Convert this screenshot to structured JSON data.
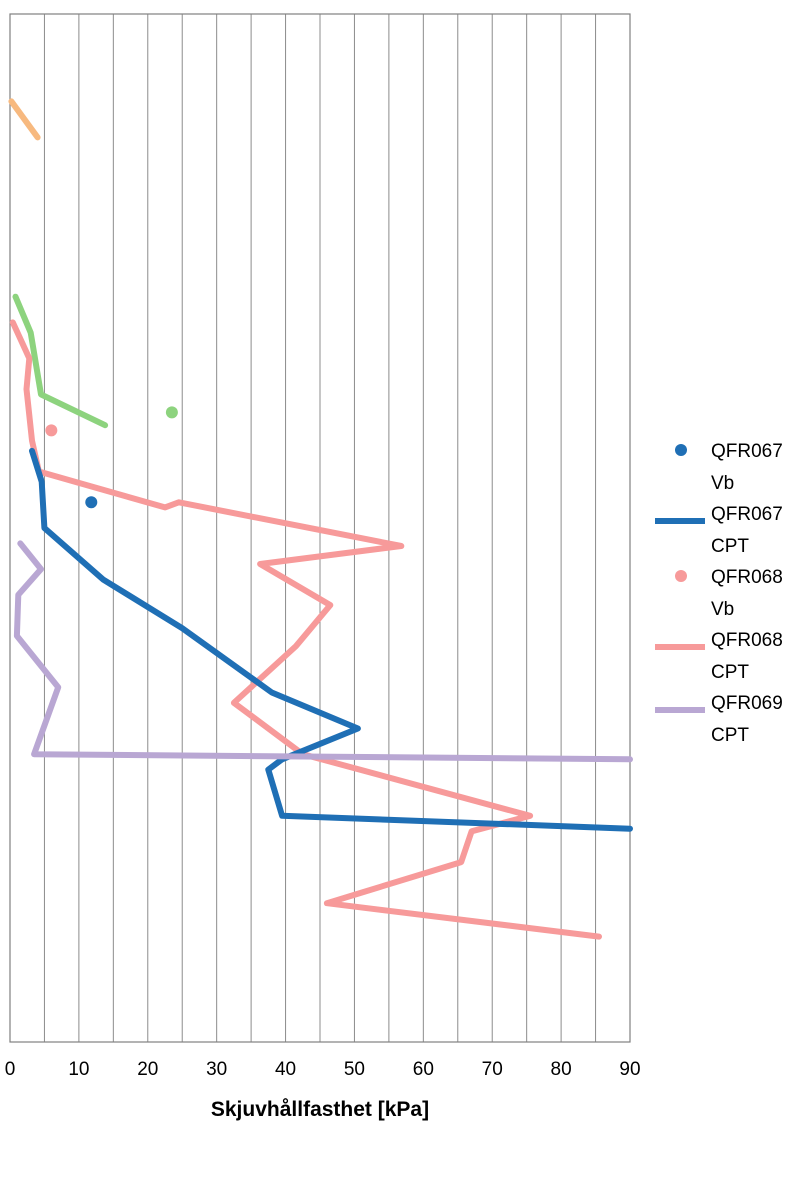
{
  "chart_data": {
    "type": "line",
    "xlabel": "Skjuvhållfasthet [kPa]",
    "ylabel": "",
    "xlim": [
      0,
      90
    ],
    "ylim": [
      0,
      20
    ],
    "y_inverted": true,
    "x_ticks": [
      "0",
      "10",
      "20",
      "30",
      "40",
      "50",
      "60",
      "70",
      "80",
      "90"
    ],
    "grid": "vertical",
    "legend_position": "right",
    "series": [
      {
        "name": "QFR067 Vb",
        "kind": "scatter",
        "color": "#1f6fb5",
        "points": [
          [
            11.8,
            9.5
          ]
        ]
      },
      {
        "name": "QFR067 CPT",
        "kind": "line",
        "color": "#1f6fb5",
        "points": [
          [
            3.2,
            8.5
          ],
          [
            4.6,
            9.1
          ],
          [
            5.0,
            10.0
          ],
          [
            13.5,
            11.0
          ],
          [
            25.0,
            11.95
          ],
          [
            38.0,
            13.2
          ],
          [
            50.5,
            13.9
          ],
          [
            39.5,
            14.5
          ],
          [
            37.5,
            14.7
          ],
          [
            39.5,
            15.6
          ],
          [
            90.0,
            15.85
          ]
        ]
      },
      {
        "name": "",
        "kind": "line",
        "color": "#f7b97f",
        "points": [
          [
            0.2,
            1.7
          ],
          [
            4.0,
            2.4
          ]
        ]
      },
      {
        "name": "",
        "kind": "line",
        "color": "#8dd37e",
        "points": [
          [
            0.8,
            5.5
          ],
          [
            3.0,
            6.2
          ],
          [
            4.5,
            7.4
          ],
          [
            13.8,
            8.0
          ]
        ]
      },
      {
        "name": "",
        "kind": "scatter",
        "color": "#8dd37e",
        "points": [
          [
            23.5,
            7.75
          ]
        ]
      },
      {
        "name": "QFR068 Vb",
        "kind": "scatter",
        "color": "#f79a9a",
        "points": [
          [
            6.0,
            8.1
          ]
        ]
      },
      {
        "name": "QFR068 CPT",
        "kind": "line",
        "color": "#f79a9a",
        "points": [
          [
            0.4,
            6.0
          ],
          [
            2.8,
            6.7
          ],
          [
            2.4,
            7.3
          ],
          [
            3.2,
            8.3
          ],
          [
            4.2,
            8.9
          ],
          [
            22.5,
            9.6
          ],
          [
            24.5,
            9.5
          ],
          [
            56.8,
            10.35
          ],
          [
            36.3,
            10.7
          ],
          [
            46.5,
            11.5
          ],
          [
            41.5,
            12.3
          ],
          [
            32.5,
            13.4
          ],
          [
            42.5,
            14.4
          ],
          [
            75.5,
            15.6
          ],
          [
            67.0,
            15.9
          ],
          [
            65.5,
            16.5
          ],
          [
            46.0,
            17.3
          ],
          [
            85.5,
            17.95
          ]
        ]
      },
      {
        "name": "QFR069 CPT",
        "kind": "line",
        "color": "#b9a7d3",
        "points": [
          [
            1.5,
            10.3
          ],
          [
            4.5,
            10.8
          ],
          [
            1.2,
            11.3
          ],
          [
            1.0,
            12.1
          ],
          [
            7.0,
            13.1
          ],
          [
            3.5,
            14.4
          ],
          [
            90.0,
            14.5
          ]
        ]
      }
    ]
  }
}
